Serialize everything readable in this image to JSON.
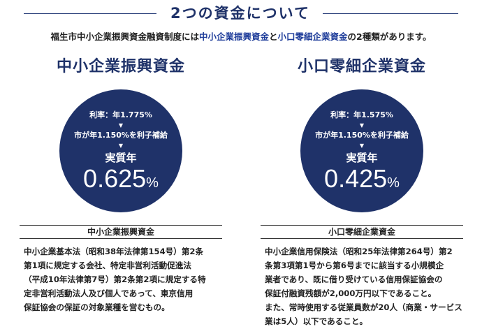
{
  "header": {
    "title": "2つの資金について",
    "intro_prefix": "福生市中小企業振興資金融資制度には",
    "intro_hl1": "中小企業振興資金",
    "intro_mid": "と",
    "intro_hl2": "小口零細企業資金",
    "intro_suffix": "の2種類があります。"
  },
  "funds": [
    {
      "title": "中小企業振興資金",
      "rate_text": "利率：年1.775%",
      "arrow": "▼",
      "subsidy_text": "市が年1.150%を利子補給",
      "effective_label": "実質年",
      "effective_value": "0.625",
      "percent_sign": "%",
      "box_title": "中小企業振興資金",
      "box_body": "中小企業基本法（昭和38年法律第154号）第2条\n第1項に規定する会社、特定非営利活動促進法\n（平成10年法律第7号）第2条第2項に規定する特\n定非営利活動法人及び個人であって、東京信用\n保証協会の保証の対象業種を営むもの。"
    },
    {
      "title": "小口零細企業資金",
      "rate_text": "利率：年1.575%",
      "arrow": "▼",
      "subsidy_text": "市が年1.150%を利子補給",
      "effective_label": "実質年",
      "effective_value": "0.425",
      "percent_sign": "%",
      "box_title": "小口零細企業資金",
      "box_body": "中小企業信用保険法（昭和25年法律第264号）第2\n条第3項第1号から第6号までに該当する小規模企\n業者であり、既に借り受けている信用保証協会の\n保証付融資残額が2,000万円以下であること。\nまた、常時使用する従業員数が20人（商業・サービス\n業は5人）以下であること。"
    }
  ],
  "colors": {
    "navy": "#1f3269",
    "highlight_blue": "#1f3d9a",
    "text": "#222222"
  }
}
